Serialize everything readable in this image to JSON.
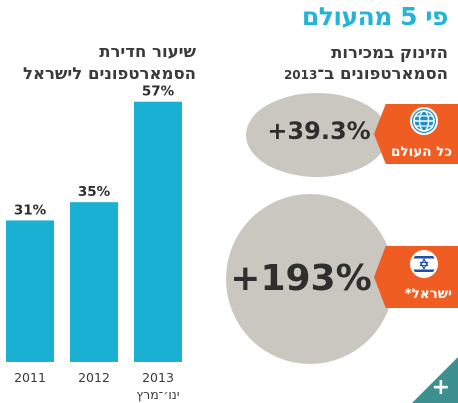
{
  "header": {
    "title": "פי 5 מהעולם"
  },
  "growth_panel": {
    "title_line1": "הזינוק במכירות",
    "title_line2": "הסמארטפונים ב־",
    "title_year": "2013",
    "world": {
      "label": "כל העולם",
      "value": "+39.3%",
      "icon": "globe-icon"
    },
    "israel": {
      "label": "ישראל*",
      "value": "+193%",
      "icon": "israel-flag-icon"
    }
  },
  "chart_data": {
    "type": "bar",
    "title": "שיעור חדירת הסמארטפונים לישראל",
    "title_lines": [
      "שיעור חדירת",
      "הסמארטפונים לישראל"
    ],
    "categories": [
      "2011",
      "2012",
      "2013"
    ],
    "category_sublabels": [
      "",
      "",
      "ינו׳־מרץ"
    ],
    "values": [
      31,
      35,
      57
    ],
    "value_labels": [
      "31%",
      "35%",
      "57%"
    ],
    "ylim": [
      0,
      60
    ],
    "bar_color": "#1ab0d3",
    "grid": false
  },
  "colors": {
    "accent": "#25b3d6",
    "tag": "#ef5d22",
    "bubble": "#c9c7bf",
    "corner": "#3e8f8f"
  },
  "footer": {
    "more_icon": "plus-icon",
    "more_label": "+"
  }
}
